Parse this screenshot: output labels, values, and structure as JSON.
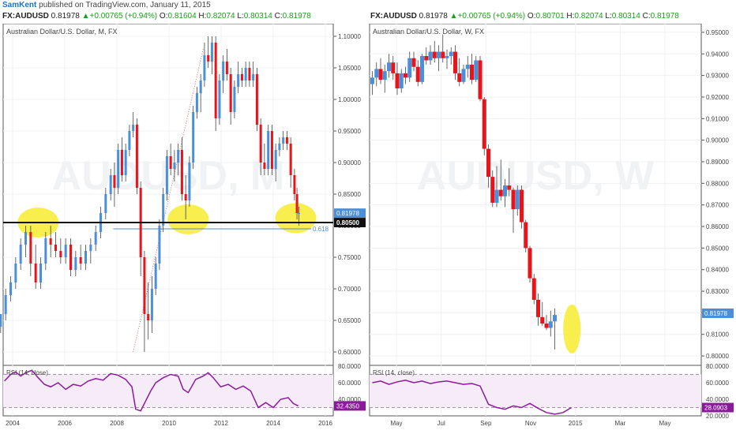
{
  "header": {
    "user": "SamKent",
    "published_text": "published on TradingView.com, January 11, 2015"
  },
  "left_quote": {
    "symbol": "FX:AUDUSD",
    "price": "0.81978",
    "arrow": "▲",
    "change": "+0.00765 (+0.94%)",
    "o_label": "O:",
    "o": "0.81604",
    "h_label": "H:",
    "h": "0.82074",
    "l_label": "L:",
    "l": "0.80314",
    "c_label": "C:",
    "c": "0.81978"
  },
  "right_quote": {
    "symbol": "FX:AUDUSD",
    "price": "0.81978",
    "arrow": "▲",
    "change": "+0.00765 (+0.94%)",
    "o_label": "O:",
    "o": "0.80701",
    "h_label": "H:",
    "h": "0.82074",
    "l_label": "L:",
    "l": "0.80314",
    "c_label": "C:",
    "c": "0.81978"
  },
  "colors": {
    "up": "#4a8fd8",
    "down": "#e8141a",
    "rsi": "#8b1a9b",
    "highlight": "#f7ec3a",
    "hline": "#111111",
    "fib": "#4a8fd8",
    "trend": "#d06a6a"
  },
  "chart_data": [
    {
      "type": "candlestick",
      "title": "Australian Dollar/U.S. Dollar, M, FX",
      "watermark_symbol": "AUDUSD, M",
      "x_ticks": [
        "2004",
        "2006",
        "2008",
        "2010",
        "2012",
        "2014",
        "2016"
      ],
      "y_ticks": [
        "1.10000",
        "1.05000",
        "1.00000",
        "0.95000",
        "0.90000",
        "0.85000",
        "0.80000",
        "0.75000",
        "0.70000",
        "0.65000",
        "0.60000"
      ],
      "ylim": [
        0.58,
        1.12
      ],
      "xlim": [
        2003.2,
        2016.4
      ],
      "horizontal_line": {
        "value": 0.805,
        "label": "0.80500"
      },
      "last_price": {
        "value": 0.81978,
        "label": "0.81978"
      },
      "fib_level": {
        "value": 0.795,
        "label": "0.618",
        "x_from": 2007.6
      },
      "trend_line": {
        "x0": 2008.4,
        "y0": 0.6,
        "x1": 2011.2,
        "y1": 1.08
      },
      "highlights": [
        {
          "x": 2004.6,
          "y": 0.805
        },
        {
          "x": 2010.6,
          "y": 0.81
        },
        {
          "x": 2014.9,
          "y": 0.812
        }
      ],
      "rsi": {
        "label": "RSI (14, close)",
        "ylim": [
          20,
          80
        ],
        "y_ticks": [
          "80.0000",
          "60.0000",
          "40.0000"
        ],
        "bands": [
          70,
          30
        ],
        "last": "32.4350",
        "x": [
          2003.25,
          2003.5,
          2003.7,
          2003.9,
          2004.1,
          2004.35,
          2004.6,
          2004.85,
          2005.1,
          2005.4,
          2005.7,
          2006.0,
          2006.3,
          2006.6,
          2006.9,
          2007.2,
          2007.5,
          2007.8,
          2008.1,
          2008.35,
          2008.5,
          2008.7,
          2008.9,
          2009.1,
          2009.3,
          2009.6,
          2009.9,
          2010.2,
          2010.4,
          2010.6,
          2010.9,
          2011.2,
          2011.4,
          2011.6,
          2011.9,
          2012.2,
          2012.5,
          2012.8,
          2013.1,
          2013.4,
          2013.7,
          2014.0,
          2014.3,
          2014.6,
          2014.8,
          2015.0
        ],
        "values": [
          62,
          70,
          73,
          68,
          72,
          75,
          66,
          58,
          55,
          60,
          52,
          58,
          56,
          62,
          65,
          63,
          71,
          69,
          64,
          55,
          28,
          26,
          38,
          50,
          60,
          66,
          70,
          68,
          52,
          48,
          64,
          68,
          72,
          66,
          55,
          58,
          52,
          56,
          50,
          30,
          36,
          30,
          40,
          42,
          35,
          32
        ]
      },
      "candles": [
        [
          2003.1,
          0.64,
          0.66,
          0.63,
          0.66
        ],
        [
          2003.3,
          0.66,
          0.7,
          0.65,
          0.69
        ],
        [
          2003.5,
          0.69,
          0.72,
          0.68,
          0.71
        ],
        [
          2003.7,
          0.71,
          0.75,
          0.7,
          0.74
        ],
        [
          2003.9,
          0.74,
          0.78,
          0.73,
          0.77
        ],
        [
          2004.1,
          0.77,
          0.8,
          0.75,
          0.79
        ],
        [
          2004.3,
          0.79,
          0.8,
          0.72,
          0.74
        ],
        [
          2004.5,
          0.74,
          0.77,
          0.7,
          0.71
        ],
        [
          2004.7,
          0.71,
          0.75,
          0.7,
          0.74
        ],
        [
          2004.9,
          0.74,
          0.79,
          0.73,
          0.78
        ],
        [
          2005.1,
          0.78,
          0.8,
          0.75,
          0.77
        ],
        [
          2005.3,
          0.77,
          0.79,
          0.75,
          0.76
        ],
        [
          2005.5,
          0.76,
          0.78,
          0.74,
          0.75
        ],
        [
          2005.7,
          0.75,
          0.78,
          0.74,
          0.77
        ],
        [
          2005.9,
          0.77,
          0.78,
          0.72,
          0.73
        ],
        [
          2006.1,
          0.73,
          0.76,
          0.72,
          0.75
        ],
        [
          2006.3,
          0.75,
          0.77,
          0.73,
          0.74
        ],
        [
          2006.5,
          0.74,
          0.77,
          0.73,
          0.76
        ],
        [
          2006.7,
          0.76,
          0.78,
          0.74,
          0.77
        ],
        [
          2006.9,
          0.77,
          0.8,
          0.76,
          0.79
        ],
        [
          2007.1,
          0.79,
          0.83,
          0.78,
          0.82
        ],
        [
          2007.3,
          0.82,
          0.86,
          0.81,
          0.85
        ],
        [
          2007.5,
          0.85,
          0.89,
          0.84,
          0.88
        ],
        [
          2007.65,
          0.88,
          0.9,
          0.83,
          0.86
        ],
        [
          2007.8,
          0.86,
          0.93,
          0.85,
          0.92
        ],
        [
          2007.95,
          0.92,
          0.94,
          0.87,
          0.88
        ],
        [
          2008.1,
          0.88,
          0.93,
          0.87,
          0.92
        ],
        [
          2008.25,
          0.92,
          0.96,
          0.91,
          0.95
        ],
        [
          2008.4,
          0.95,
          0.98,
          0.94,
          0.96
        ],
        [
          2008.55,
          0.96,
          0.97,
          0.85,
          0.86
        ],
        [
          2008.7,
          0.86,
          0.87,
          0.72,
          0.75
        ],
        [
          2008.85,
          0.75,
          0.76,
          0.6,
          0.66
        ],
        [
          2009.0,
          0.66,
          0.71,
          0.62,
          0.65
        ],
        [
          2009.15,
          0.65,
          0.72,
          0.63,
          0.7
        ],
        [
          2009.3,
          0.7,
          0.75,
          0.69,
          0.74
        ],
        [
          2009.45,
          0.74,
          0.81,
          0.73,
          0.8
        ],
        [
          2009.6,
          0.8,
          0.86,
          0.79,
          0.85
        ],
        [
          2009.75,
          0.85,
          0.92,
          0.84,
          0.91
        ],
        [
          2009.9,
          0.91,
          0.93,
          0.88,
          0.89
        ],
        [
          2010.05,
          0.89,
          0.92,
          0.87,
          0.9
        ],
        [
          2010.2,
          0.9,
          0.93,
          0.88,
          0.92
        ],
        [
          2010.35,
          0.92,
          0.94,
          0.84,
          0.85
        ],
        [
          2010.5,
          0.85,
          0.88,
          0.81,
          0.84
        ],
        [
          2010.65,
          0.84,
          0.91,
          0.83,
          0.9
        ],
        [
          2010.8,
          0.9,
          0.99,
          0.89,
          0.98
        ],
        [
          2010.95,
          0.98,
          1.02,
          0.97,
          1.01
        ],
        [
          2011.1,
          1.01,
          1.04,
          0.98,
          1.03
        ],
        [
          2011.25,
          1.03,
          1.09,
          1.02,
          1.07
        ],
        [
          2011.4,
          1.07,
          1.1,
          1.05,
          1.06
        ],
        [
          2011.55,
          1.06,
          1.1,
          1.04,
          1.09
        ],
        [
          2011.7,
          1.09,
          1.1,
          0.95,
          0.97
        ],
        [
          2011.85,
          0.97,
          1.04,
          0.96,
          1.03
        ],
        [
          2012.0,
          1.03,
          1.07,
          1.01,
          1.06
        ],
        [
          2012.15,
          1.06,
          1.08,
          1.03,
          1.04
        ],
        [
          2012.3,
          1.04,
          1.05,
          0.96,
          0.98
        ],
        [
          2012.45,
          0.98,
          1.03,
          0.97,
          1.02
        ],
        [
          2012.6,
          1.02,
          1.06,
          1.01,
          1.04
        ],
        [
          2012.75,
          1.04,
          1.05,
          1.02,
          1.03
        ],
        [
          2012.9,
          1.03,
          1.06,
          1.02,
          1.05
        ],
        [
          2013.05,
          1.05,
          1.06,
          1.02,
          1.03
        ],
        [
          2013.2,
          1.03,
          1.06,
          1.02,
          1.04
        ],
        [
          2013.35,
          1.04,
          1.05,
          0.95,
          0.96
        ],
        [
          2013.5,
          0.96,
          0.97,
          0.88,
          0.9
        ],
        [
          2013.65,
          0.9,
          0.93,
          0.88,
          0.89
        ],
        [
          2013.8,
          0.89,
          0.96,
          0.88,
          0.95
        ],
        [
          2013.95,
          0.95,
          0.96,
          0.88,
          0.89
        ],
        [
          2014.1,
          0.89,
          0.93,
          0.87,
          0.92
        ],
        [
          2014.25,
          0.92,
          0.94,
          0.91,
          0.93
        ],
        [
          2014.4,
          0.93,
          0.95,
          0.92,
          0.94
        ],
        [
          2014.55,
          0.94,
          0.95,
          0.92,
          0.93
        ],
        [
          2014.7,
          0.93,
          0.94,
          0.86,
          0.88
        ],
        [
          2014.85,
          0.88,
          0.89,
          0.84,
          0.85
        ],
        [
          2014.95,
          0.85,
          0.86,
          0.81,
          0.82
        ],
        [
          2015.03,
          0.82,
          0.83,
          0.8,
          0.82
        ]
      ]
    },
    {
      "type": "candlestick",
      "title": "Australian Dollar/U.S. Dollar, W, FX",
      "watermark_symbol": "AUDUSD, W",
      "x_ticks": [
        "May",
        "Jul",
        "Sep",
        "Nov",
        "2015",
        "Mar",
        "May"
      ],
      "y_ticks": [
        "0.95000",
        "0.94000",
        "0.93000",
        "0.92000",
        "0.91000",
        "0.90000",
        "0.89000",
        "0.88000",
        "0.87000",
        "0.86000",
        "0.85000",
        "0.84000",
        "0.83000",
        "0.82000",
        "0.81000",
        "0.80000"
      ],
      "ylim": [
        0.796,
        0.954
      ],
      "xlim": [
        0,
        60
      ],
      "last_price": {
        "value": 0.81978,
        "label": "0.81978"
      },
      "highlights": [
        {
          "x": 36.6,
          "y": 0.8125
        }
      ],
      "rsi": {
        "label": "RSI (14, close)",
        "ylim": [
          20,
          80
        ],
        "y_ticks": [
          "80.0000",
          "60.0000",
          "40.0000",
          "20.0000"
        ],
        "bands": [
          70,
          30
        ],
        "last": "28.0903",
        "x": [
          0.5,
          2,
          3.5,
          5,
          6.5,
          8,
          9.5,
          11,
          12.5,
          14,
          15.5,
          17,
          18.5,
          20,
          21.5,
          23,
          24.5,
          26,
          27.5,
          29,
          30.5,
          32,
          33.5,
          35,
          36.5
        ],
        "values": [
          60,
          62,
          58,
          61,
          63,
          60,
          62,
          59,
          61,
          62,
          60,
          58,
          59,
          56,
          34,
          30,
          28,
          32,
          30,
          35,
          29,
          24,
          22,
          24,
          30
        ]
      },
      "candles": [
        [
          0.5,
          0.926,
          0.932,
          0.921,
          0.929
        ],
        [
          1.25,
          0.929,
          0.936,
          0.925,
          0.933
        ],
        [
          2.0,
          0.933,
          0.938,
          0.926,
          0.928
        ],
        [
          2.75,
          0.928,
          0.935,
          0.922,
          0.932
        ],
        [
          3.5,
          0.932,
          0.94,
          0.929,
          0.936
        ],
        [
          4.25,
          0.936,
          0.939,
          0.928,
          0.931
        ],
        [
          5.0,
          0.931,
          0.936,
          0.921,
          0.924
        ],
        [
          5.75,
          0.924,
          0.933,
          0.922,
          0.931
        ],
        [
          6.5,
          0.931,
          0.934,
          0.926,
          0.929
        ],
        [
          7.25,
          0.929,
          0.941,
          0.927,
          0.938
        ],
        [
          8.0,
          0.938,
          0.941,
          0.932,
          0.934
        ],
        [
          8.75,
          0.934,
          0.937,
          0.925,
          0.927
        ],
        [
          9.5,
          0.927,
          0.94,
          0.926,
          0.939
        ],
        [
          10.25,
          0.939,
          0.943,
          0.935,
          0.937
        ],
        [
          11.0,
          0.937,
          0.944,
          0.935,
          0.941
        ],
        [
          11.75,
          0.941,
          0.946,
          0.936,
          0.938
        ],
        [
          12.5,
          0.938,
          0.944,
          0.932,
          0.941
        ],
        [
          13.25,
          0.941,
          0.949,
          0.936,
          0.938
        ],
        [
          14.0,
          0.938,
          0.942,
          0.933,
          0.939
        ],
        [
          14.75,
          0.939,
          0.943,
          0.935,
          0.941
        ],
        [
          15.5,
          0.941,
          0.944,
          0.928,
          0.931
        ],
        [
          16.25,
          0.931,
          0.938,
          0.925,
          0.927
        ],
        [
          17.0,
          0.927,
          0.935,
          0.926,
          0.933
        ],
        [
          17.75,
          0.933,
          0.939,
          0.929,
          0.935
        ],
        [
          18.5,
          0.935,
          0.94,
          0.926,
          0.928
        ],
        [
          19.25,
          0.928,
          0.939,
          0.927,
          0.937
        ],
        [
          20.0,
          0.937,
          0.939,
          0.918,
          0.919
        ],
        [
          20.75,
          0.919,
          0.92,
          0.893,
          0.896
        ],
        [
          21.5,
          0.896,
          0.898,
          0.878,
          0.883
        ],
        [
          22.25,
          0.883,
          0.886,
          0.869,
          0.871
        ],
        [
          23.0,
          0.871,
          0.888,
          0.869,
          0.877
        ],
        [
          23.75,
          0.877,
          0.891,
          0.872,
          0.874
        ],
        [
          24.5,
          0.874,
          0.882,
          0.869,
          0.879
        ],
        [
          25.25,
          0.879,
          0.887,
          0.874,
          0.877
        ],
        [
          26.0,
          0.877,
          0.878,
          0.857,
          0.868
        ],
        [
          26.75,
          0.868,
          0.879,
          0.865,
          0.877
        ],
        [
          27.5,
          0.877,
          0.879,
          0.859,
          0.862
        ],
        [
          28.25,
          0.862,
          0.863,
          0.848,
          0.85
        ],
        [
          29.0,
          0.85,
          0.851,
          0.834,
          0.836
        ],
        [
          29.75,
          0.836,
          0.838,
          0.824,
          0.826
        ],
        [
          30.5,
          0.826,
          0.829,
          0.814,
          0.818
        ],
        [
          31.25,
          0.818,
          0.825,
          0.814,
          0.815
        ],
        [
          32.0,
          0.815,
          0.819,
          0.812,
          0.813
        ],
        [
          32.75,
          0.813,
          0.821,
          0.809,
          0.816
        ],
        [
          33.5,
          0.816,
          0.822,
          0.803,
          0.819
        ]
      ]
    }
  ]
}
